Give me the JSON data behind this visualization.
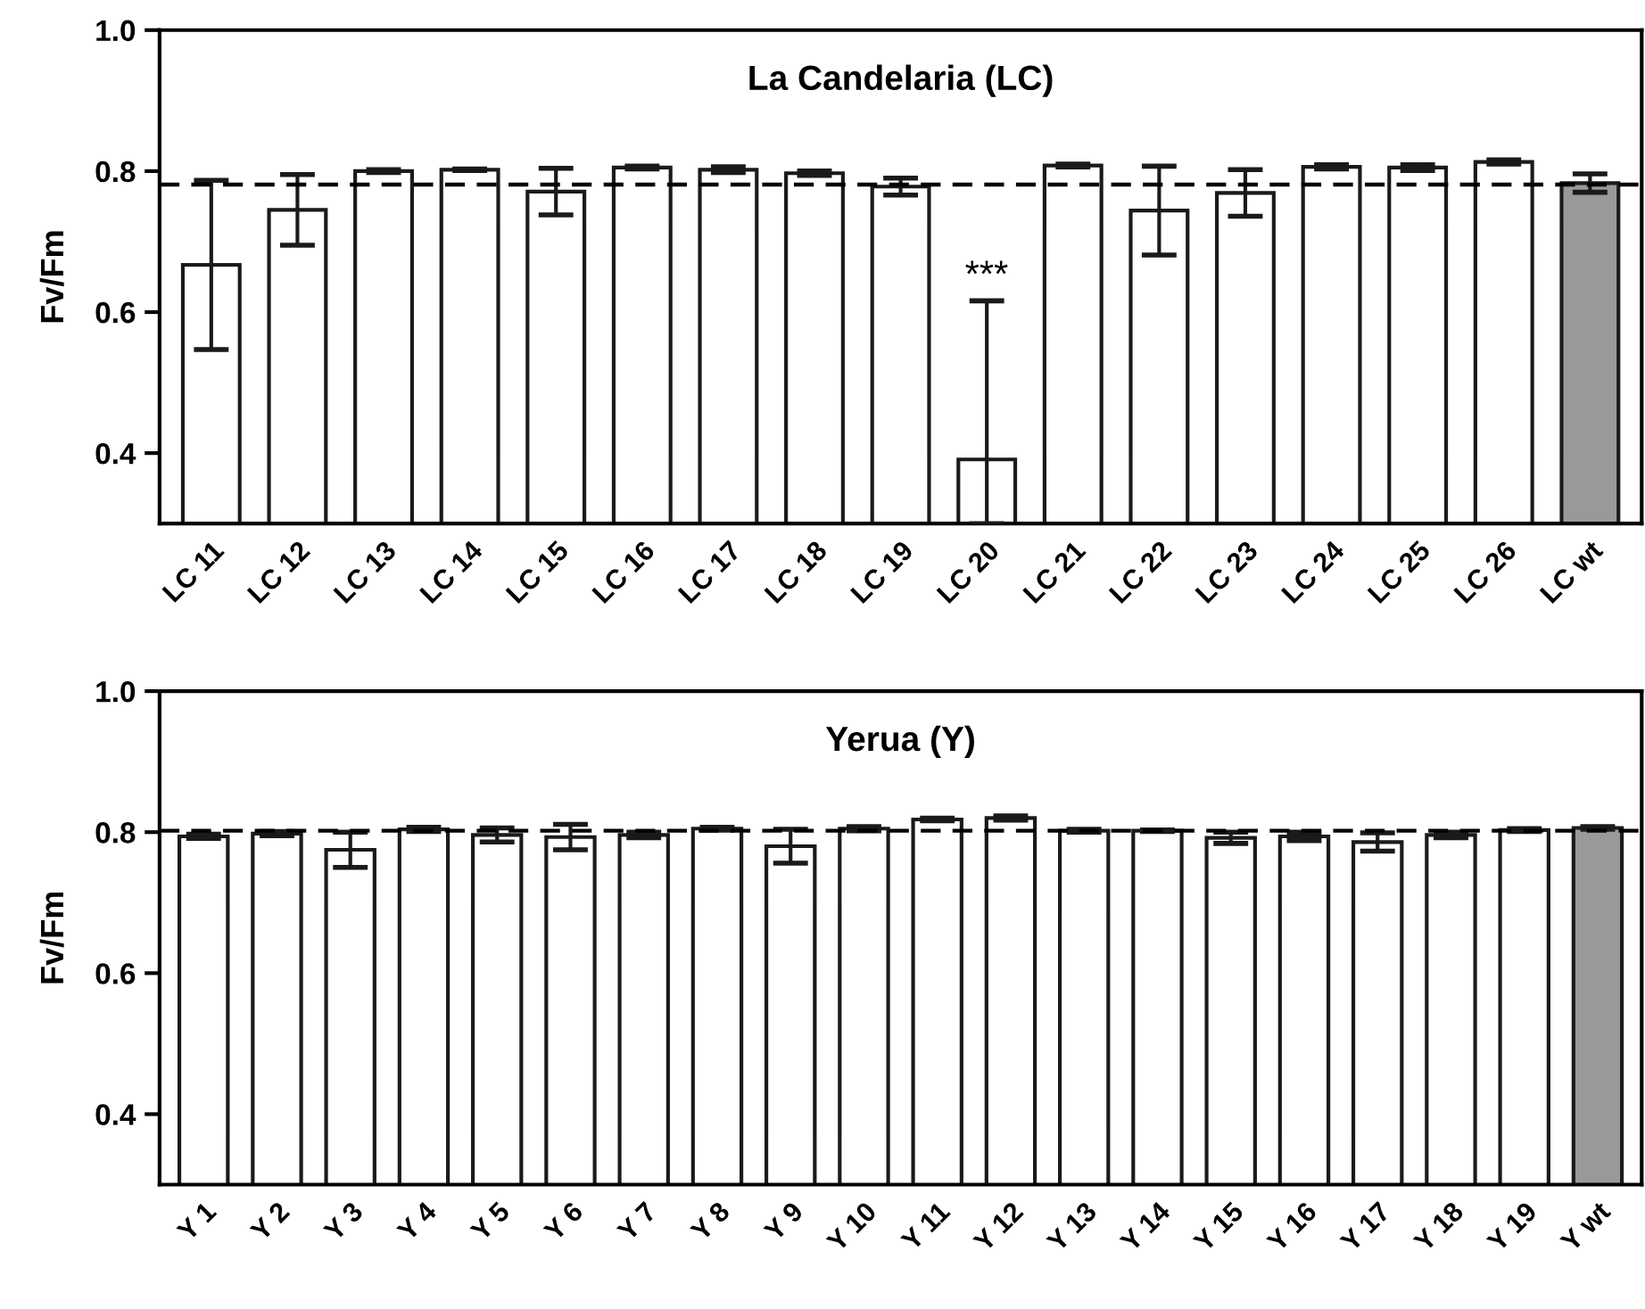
{
  "chart_data": [
    {
      "type": "bar",
      "title": "La Candelaria (LC)",
      "ylabel": "Fv/Fm",
      "categories": [
        "LC 11",
        "LC 12",
        "LC 13",
        "LC 14",
        "LC 15",
        "LC 16",
        "LC 17",
        "LC 18",
        "LC 19",
        "LC 20",
        "LC 21",
        "LC 22",
        "LC 23",
        "LC 24",
        "LC 25",
        "LC 26",
        "LC wt"
      ],
      "values": [
        0.667,
        0.745,
        0.8,
        0.802,
        0.771,
        0.805,
        0.802,
        0.797,
        0.778,
        0.391,
        0.808,
        0.744,
        0.769,
        0.806,
        0.805,
        0.813,
        0.783
      ],
      "errors": [
        0.12,
        0.05,
        0.002,
        0.001,
        0.033,
        0.002,
        0.004,
        0.003,
        0.012,
        [
          0.3,
          0.616
        ],
        0.002,
        0.063,
        0.033,
        0.003,
        0.004,
        0.003,
        0.013
      ],
      "colors": [
        "#ffffff",
        "#ffffff",
        "#ffffff",
        "#ffffff",
        "#ffffff",
        "#ffffff",
        "#ffffff",
        "#ffffff",
        "#ffffff",
        "#ffffff",
        "#ffffff",
        "#ffffff",
        "#ffffff",
        "#ffffff",
        "#ffffff",
        "#ffffff",
        "#999999"
      ],
      "ylim": [
        0.3,
        1.0
      ],
      "yticks": [
        0.4,
        0.6,
        0.8,
        {
          "value": 1.0,
          "label": "1.0"
        }
      ],
      "grid": false,
      "legend": false,
      "ref_lines": [
        {
          "axis": "y",
          "value": 0.781,
          "line_style": "dashed",
          "color": "#000000"
        }
      ],
      "annotations": [
        "***"
      ]
    },
    {
      "type": "bar",
      "title": "Yerua (Y)",
      "ylabel": "Fv/Fm",
      "categories": [
        "Y 1",
        "Y 2",
        "Y 3",
        "Y 4",
        "Y 5",
        "Y 6",
        "Y 7",
        "Y 8",
        "Y 9",
        "Y 10",
        "Y 11",
        "Y 12",
        "Y 13",
        "Y 14",
        "Y 15",
        "Y 16",
        "Y 17",
        "Y 18",
        "Y 19",
        "Y wt"
      ],
      "values": [
        0.794,
        0.798,
        0.775,
        0.804,
        0.796,
        0.793,
        0.796,
        0.805,
        0.78,
        0.805,
        0.818,
        0.82,
        0.802,
        0.802,
        0.792,
        0.794,
        0.786,
        0.796,
        0.803,
        0.806
      ],
      "errors": [
        0.003,
        0.003,
        0.025,
        0.003,
        0.01,
        0.018,
        0.004,
        0.002,
        0.024,
        0.003,
        0.002,
        0.003,
        0.002,
        0.001,
        0.008,
        0.006,
        0.013,
        0.004,
        0.002,
        0.002
      ],
      "colors": [
        "#ffffff",
        "#ffffff",
        "#ffffff",
        "#ffffff",
        "#ffffff",
        "#ffffff",
        "#ffffff",
        "#ffffff",
        "#ffffff",
        "#ffffff",
        "#ffffff",
        "#ffffff",
        "#ffffff",
        "#ffffff",
        "#ffffff",
        "#ffffff",
        "#ffffff",
        "#ffffff",
        "#ffffff",
        "#999999"
      ],
      "ylim": [
        0.3,
        1.0
      ],
      "yticks": [
        0.4,
        0.6,
        0.8,
        {
          "value": 1.0,
          "label": "1.0"
        }
      ],
      "grid": false,
      "legend": false,
      "ref_lines": [
        {
          "axis": "y",
          "value": 0.802,
          "line_style": "dashed",
          "color": "#000000"
        }
      ]
    }
  ]
}
